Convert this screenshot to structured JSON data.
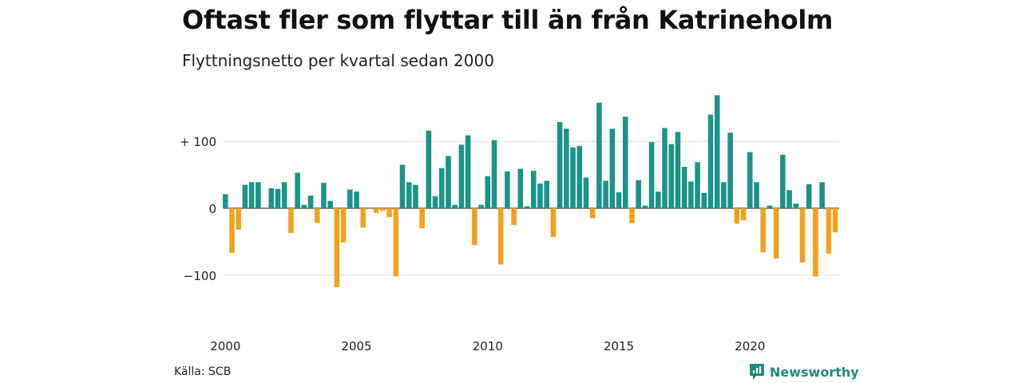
{
  "title": "Oftast fler som flyttar till än från Katrineholm",
  "subtitle": "Flyttningsnetto per kvartal sedan 2000",
  "source": "Källa: SCB",
  "brand": "Newsworthy",
  "colors": {
    "positive": "#1b9486",
    "negative": "#f0a21e",
    "grid": "#dddddd",
    "brand": "#1f8a7e"
  },
  "chart_data": {
    "type": "bar",
    "x_start": 2000,
    "periods_per_year": 4,
    "ylim": [
      -150,
      160
    ],
    "yticks": [
      {
        "value": 100,
        "label": "+ 100"
      },
      {
        "value": 0,
        "label": "0"
      },
      {
        "value": -100,
        "label": "−100"
      }
    ],
    "xticks": [
      "2000",
      "2005",
      "2010",
      "2015",
      "2020"
    ],
    "values": [
      21,
      -67,
      -32,
      35,
      39,
      39,
      0,
      30,
      29,
      39,
      -37,
      53,
      5,
      19,
      -22,
      38,
      11,
      -118,
      -51,
      28,
      25,
      -29,
      -1,
      -7,
      -4,
      -13,
      -102,
      65,
      39,
      35,
      -30,
      116,
      18,
      60,
      78,
      5,
      95,
      109,
      -55,
      5,
      48,
      102,
      -84,
      55,
      -25,
      59,
      3,
      56,
      37,
      41,
      -43,
      129,
      119,
      91,
      93,
      46,
      -15,
      158,
      41,
      119,
      24,
      137,
      -22,
      42,
      4,
      99,
      25,
      120,
      96,
      114,
      62,
      40,
      69,
      23,
      140,
      169,
      39,
      113,
      -23,
      -18,
      84,
      39,
      -66,
      4,
      -75,
      80,
      27,
      7,
      -81,
      36,
      -102,
      39,
      -68,
      -36
    ]
  }
}
